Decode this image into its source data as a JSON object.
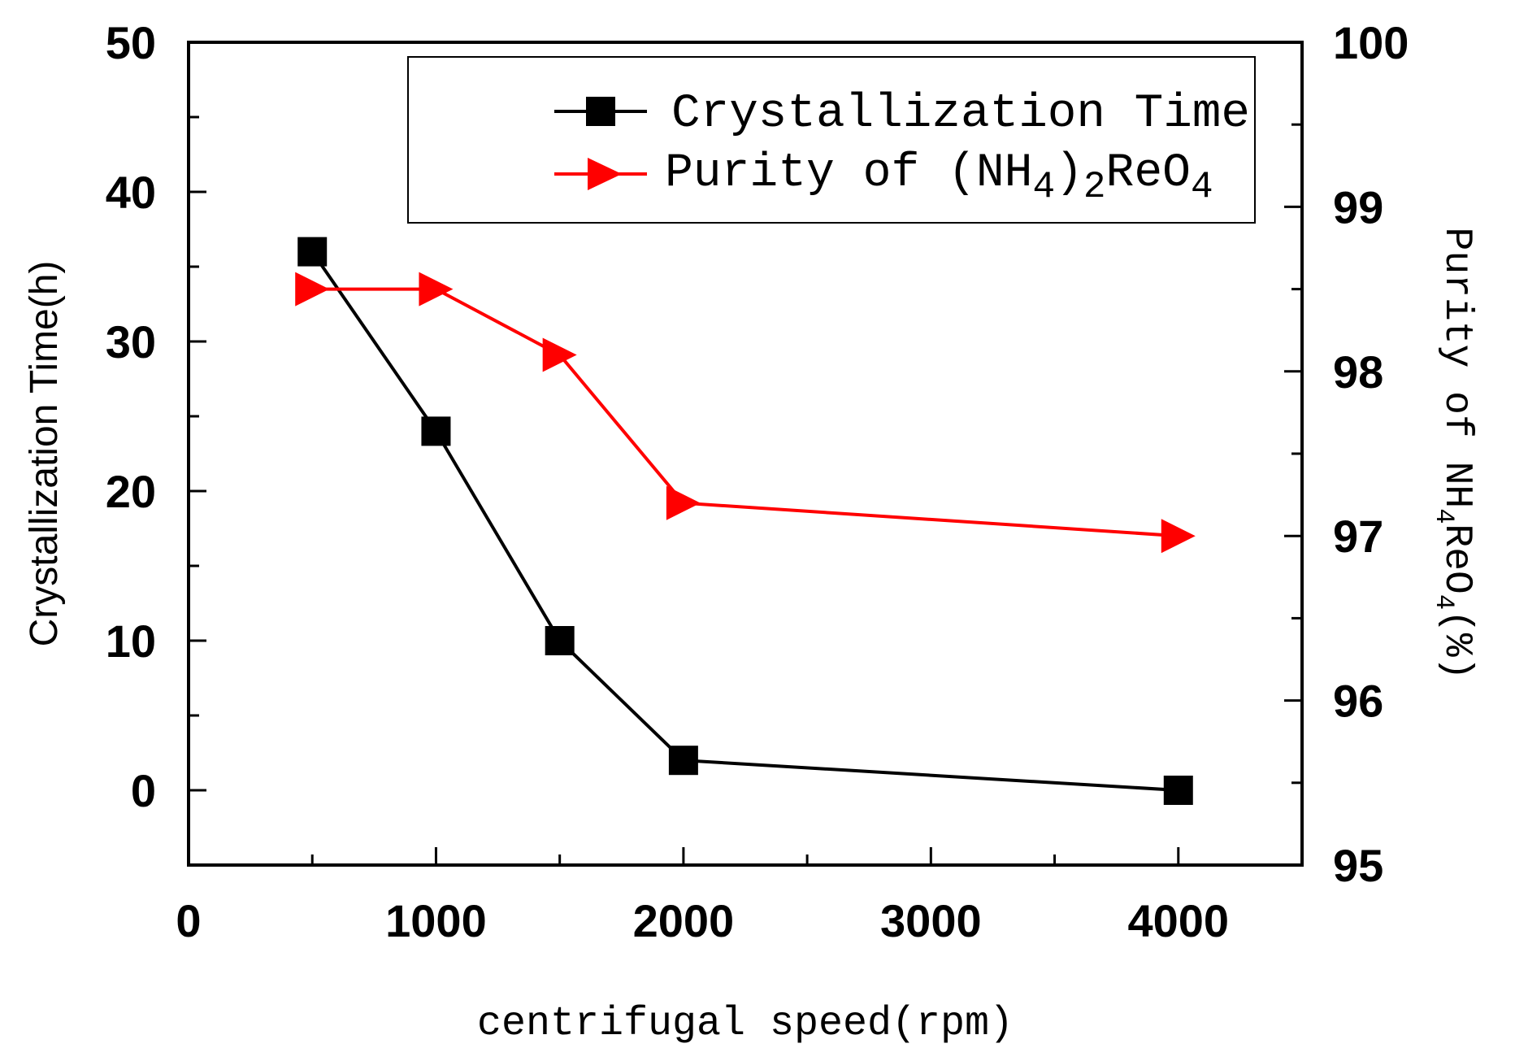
{
  "chart_data": {
    "type": "line",
    "x_axis": {
      "label": "centrifugal speed(rpm)",
      "range": [
        0,
        4500
      ],
      "ticks": [
        0,
        1000,
        2000,
        3000,
        4000
      ],
      "tick_labels": [
        "0",
        "1000",
        "2000",
        "3000",
        "4000"
      ]
    },
    "y_axis_left": {
      "label": "Crystallization Time(h)",
      "range": [
        -5,
        50
      ],
      "ticks": [
        0,
        10,
        20,
        30,
        40,
        50
      ],
      "tick_labels": [
        "0",
        "10",
        "20",
        "30",
        "40",
        "50"
      ]
    },
    "y_axis_right": {
      "label_parts": [
        "Purity of NH",
        "4",
        "ReO",
        "4",
        "(%)"
      ],
      "range": [
        95,
        100
      ],
      "ticks": [
        95,
        96,
        97,
        98,
        99,
        100
      ],
      "tick_labels": [
        "95",
        "96",
        "97",
        "98",
        "99",
        "100"
      ]
    },
    "series": [
      {
        "name": "Crystallization Time",
        "axis": "left",
        "color": "#000000",
        "marker": "square",
        "x": [
          500,
          1000,
          1500,
          2000,
          4000
        ],
        "y": [
          36,
          24,
          10,
          2,
          0
        ]
      },
      {
        "name": "Purity of (NH4)2ReO4",
        "axis": "right",
        "color": "#ff0000",
        "marker": "triangle-right",
        "x": [
          500,
          1000,
          1500,
          2000,
          4000
        ],
        "y": [
          98.5,
          98.5,
          98.1,
          97.2,
          97.0
        ]
      }
    ],
    "legend": {
      "position": "top-right",
      "entries": [
        {
          "label": "Crystallization Time"
        },
        {
          "label_parts": [
            "Purity of (NH",
            "4",
            ")",
            "2",
            "ReO",
            "4"
          ]
        }
      ]
    }
  }
}
